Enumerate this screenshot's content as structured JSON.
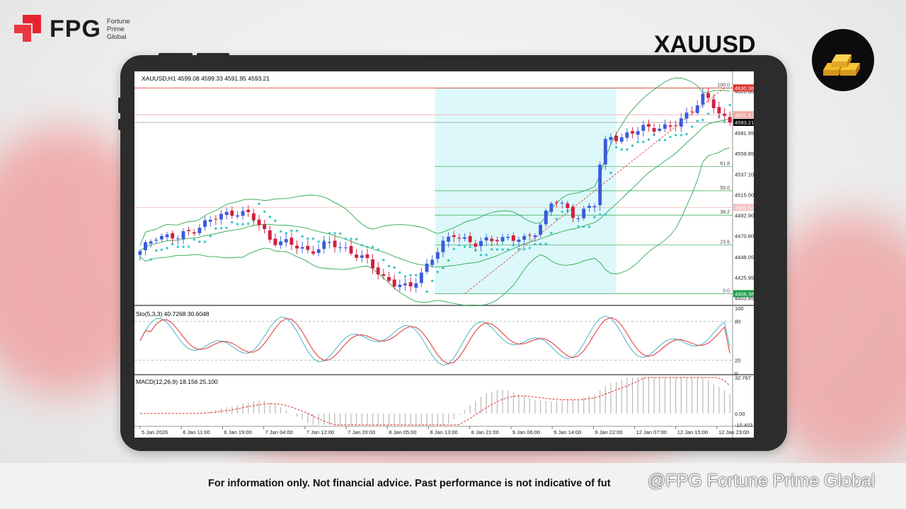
{
  "brand": {
    "name": "FPG",
    "sub_lines": [
      "Fortune",
      "Prime",
      "Global"
    ]
  },
  "symbol": "XAUUSD",
  "disclaimer": "For information only. Not financial advice. Past performance is not indicative of fut",
  "watermark": "@FPG Fortune Prime Global",
  "colors": {
    "brand_red": "#e8232f",
    "bull": "#3b5bdb",
    "bear": "#d21f3c",
    "band": "#2fa84f",
    "sar": "#39c7c7",
    "fib_zone": "#dcf8fa",
    "stoch_main": "#4bb5c8",
    "stoch_signal": "#e0332e",
    "macd_hist": "#b8b8b8",
    "macd_signal": "#e0332e"
  },
  "chart_data": {
    "type": "candlestick",
    "header": "XAUUSD,H1  4599.08 4599.33 4591.95 4593.21",
    "price_ticks": [
      "4626.80",
      "4581.95",
      "4559.85",
      "4537.10",
      "4515.00",
      "4492.90",
      "4470.80",
      "4448.05",
      "4425.95",
      "4403.85"
    ],
    "price_ylim": [
      4398,
      4636
    ],
    "price_tags": [
      {
        "label": "4630.38",
        "price": 4630.38,
        "bg": "#e0332e"
      },
      {
        "label": "4601.47",
        "price": 4601.47,
        "bg": "#f0a9a0"
      },
      {
        "label": "4593.21",
        "price": 4593.21,
        "bg": "#000000"
      },
      {
        "label": "4501.50",
        "price": 4501.5,
        "bg": "#f3c2c2"
      },
      {
        "label": "4408.38",
        "price": 4408.38,
        "bg": "#1e9e4a"
      }
    ],
    "horizontal_lines": [
      {
        "price": 4630.38,
        "color": "#e0332e"
      },
      {
        "price": 4601.47,
        "color": "#f0a9a0"
      },
      {
        "price": 4593.21,
        "color": "#999999"
      },
      {
        "price": 4501.5,
        "color": "#f3c2c2"
      }
    ],
    "fibonacci": {
      "low": 4408.38,
      "high": 4630.38,
      "levels": [
        {
          "label": "100.0",
          "ratio": 1.0
        },
        {
          "label": "61.8",
          "ratio": 0.618
        },
        {
          "label": "50.0",
          "ratio": 0.5
        },
        {
          "label": "38.2",
          "ratio": 0.382
        },
        {
          "label": "23.6",
          "ratio": 0.236
        },
        {
          "label": "0.0",
          "ratio": 0.0
        }
      ]
    },
    "x_labels": [
      "5 Jan 2026",
      "6 Jan 11:00",
      "6 Jan 19:00",
      "7 Jan 04:00",
      "7 Jan 12:00",
      "7 Jan 20:00",
      "8 Jan 05:00",
      "8 Jan 13:00",
      "8 Jan 21:00",
      "9 Jan 06:00",
      "9 Jan 14:00",
      "9 Jan 22:00",
      "12 Jan 07:00",
      "12 Jan 15:00",
      "12 Jan 23:00"
    ],
    "bar_count": 110,
    "anchors": [
      [
        0,
        4452
      ],
      [
        4,
        4472
      ],
      [
        10,
        4468
      ],
      [
        15,
        4481
      ],
      [
        20,
        4490
      ],
      [
        25,
        4498
      ],
      [
        29,
        4492
      ],
      [
        34,
        4468
      ],
      [
        40,
        4460
      ],
      [
        44,
        4455
      ],
      [
        50,
        4462
      ],
      [
        55,
        4455
      ],
      [
        60,
        4440
      ],
      [
        64,
        4425
      ],
      [
        70,
        4412
      ],
      [
        76,
        4446
      ],
      [
        82,
        4474
      ],
      [
        88,
        4460
      ],
      [
        93,
        4470
      ],
      [
        100,
        4465
      ],
      [
        104,
        4480
      ],
      [
        108,
        4510
      ],
      [
        114,
        4492
      ],
      [
        119,
        4505
      ],
      [
        120,
        4545
      ],
      [
        122,
        4582
      ],
      [
        126,
        4575
      ],
      [
        132,
        4590
      ],
      [
        138,
        4585
      ],
      [
        142,
        4600
      ],
      [
        147,
        4620
      ],
      [
        150,
        4610
      ],
      [
        154,
        4593
      ]
    ],
    "stochastic": {
      "label": "Sto(5,3,3) 40.7268 30.6048",
      "main": 40.7268,
      "signal": 30.6048,
      "levels": [
        100,
        80,
        20,
        0
      ]
    },
    "macd": {
      "label": "MACD(12,26,9) 18.156 25.100",
      "main": 18.156,
      "signal": 25.1,
      "ticks": [
        "32.767",
        "0.00",
        "-10.403"
      ],
      "ylim": [
        -10.403,
        32.767
      ]
    }
  }
}
